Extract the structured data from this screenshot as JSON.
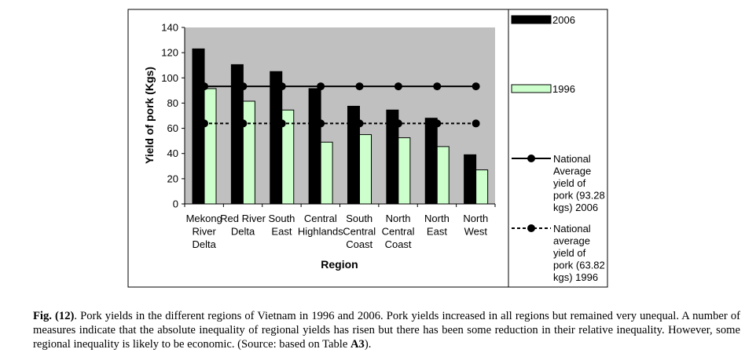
{
  "chart_data": {
    "type": "bar",
    "categories": [
      [
        "Mekong",
        "River",
        "Delta"
      ],
      [
        "Red River",
        "Delta"
      ],
      [
        "South",
        "East"
      ],
      [
        "Central",
        "Highlands"
      ],
      [
        "South",
        "Central",
        "Coast"
      ],
      [
        "North",
        "Central",
        "Coast"
      ],
      [
        "North",
        "East"
      ],
      [
        "North",
        "West"
      ]
    ],
    "series": [
      {
        "name": "2006",
        "values": [
          123,
          110.5,
          105,
          91.5,
          77.5,
          74.5,
          68,
          39
        ],
        "color": "#000000"
      },
      {
        "name": "1996",
        "values": [
          91.5,
          81.5,
          74.5,
          49,
          55,
          52.5,
          45.5,
          27
        ],
        "color": "#ccffcc"
      }
    ],
    "reference_lines": [
      {
        "value": 93.28,
        "style": "solid",
        "legend_lines": [
          "National",
          "Average",
          "yield of",
          "pork (93.28",
          "kgs)  2006"
        ]
      },
      {
        "value": 63.82,
        "style": "dashed",
        "legend_lines": [
          "National",
          "average",
          "yield of",
          "pork (63.82",
          "kgs) 1996"
        ]
      }
    ],
    "xlabel": "Region",
    "ylabel": "Yield of pork (Kgs)",
    "ylim": [
      0,
      140
    ],
    "yticks": [
      0,
      20,
      40,
      60,
      80,
      100,
      120,
      140
    ],
    "plot_background": "#c0c0c0",
    "grid": false,
    "legend_position": "right"
  },
  "caption": {
    "label": "Fig. (12)",
    "text_before_bold": ". Pork yields in the different regions of Vietnam in 1996 and 2006. Pork yields increased in all regions but remained very unequal. A number of measures indicate that the absolute inequality of regional yields has risen but there has been some reduction in their relative inequality. However, some regional inequality is likely to be economic. (Source: based on Table ",
    "table_ref": "A3",
    "text_after_bold": ")."
  }
}
